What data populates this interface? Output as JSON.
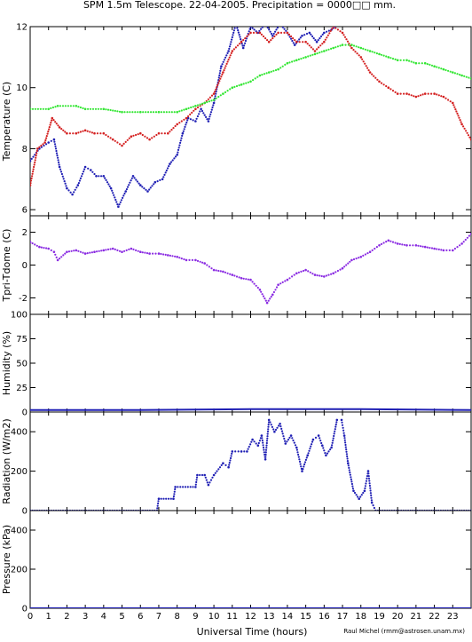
{
  "title": "SPM 1.5m Telescope. 22-04-2005. Precipitation = 0000□□ mm.",
  "xlabel": "Universal Time (hours)",
  "credit": "Raul Michel (rmm@astrosen.unam.mx)",
  "x_ticks": [
    "0",
    "1",
    "2",
    "3",
    "4",
    "5",
    "6",
    "7",
    "8",
    "9",
    "10",
    "11",
    "12",
    "13",
    "14",
    "15",
    "16",
    "17",
    "18",
    "19",
    "20",
    "21",
    "22",
    "23"
  ],
  "colors": {
    "blue": "#1f1fb4",
    "red": "#d42020",
    "green": "#33e633",
    "purple": "#8a2be2"
  },
  "chart_data": [
    {
      "type": "scatter",
      "ylabel": "Temperature (C)",
      "ylim": [
        5.8,
        12
      ],
      "yticks": [
        6,
        8,
        10,
        12
      ],
      "xlim": [
        0,
        24
      ],
      "series": [
        {
          "color": "blue",
          "points": [
            [
              0,
              7.6
            ],
            [
              0.5,
              8
            ],
            [
              1,
              8.2
            ],
            [
              1.3,
              8.3
            ],
            [
              1.6,
              7.4
            ],
            [
              2,
              6.7
            ],
            [
              2.3,
              6.5
            ],
            [
              2.6,
              6.8
            ],
            [
              3,
              7.4
            ],
            [
              3.3,
              7.3
            ],
            [
              3.6,
              7.1
            ],
            [
              4,
              7.1
            ],
            [
              4.4,
              6.7
            ],
            [
              4.8,
              6.1
            ],
            [
              5.2,
              6.6
            ],
            [
              5.6,
              7.1
            ],
            [
              6,
              6.8
            ],
            [
              6.4,
              6.6
            ],
            [
              6.8,
              6.9
            ],
            [
              7.2,
              7
            ],
            [
              7.6,
              7.5
            ],
            [
              8,
              7.8
            ],
            [
              8.3,
              8.5
            ],
            [
              8.6,
              9
            ],
            [
              9,
              8.9
            ],
            [
              9.3,
              9.3
            ],
            [
              9.7,
              8.9
            ],
            [
              10,
              9.5
            ],
            [
              10.4,
              10.7
            ],
            [
              10.8,
              11.2
            ],
            [
              11.2,
              12.1
            ],
            [
              11.6,
              11.3
            ],
            [
              12,
              12
            ],
            [
              12.4,
              11.8
            ],
            [
              12.8,
              12.1
            ],
            [
              13.2,
              11.7
            ],
            [
              13.6,
              12.1
            ],
            [
              14,
              11.8
            ],
            [
              14.4,
              11.4
            ],
            [
              14.8,
              11.7
            ],
            [
              15.2,
              11.8
            ],
            [
              15.6,
              11.5
            ],
            [
              16,
              11.8
            ],
            [
              16.4,
              11.9
            ],
            [
              16.8,
              12.1
            ]
          ]
        },
        {
          "color": "red",
          "points": [
            [
              0,
              6.8
            ],
            [
              0.4,
              8
            ],
            [
              0.8,
              8.2
            ],
            [
              1.2,
              9
            ],
            [
              1.6,
              8.7
            ],
            [
              2,
              8.5
            ],
            [
              2.5,
              8.5
            ],
            [
              3,
              8.6
            ],
            [
              3.5,
              8.5
            ],
            [
              4,
              8.5
            ],
            [
              4.5,
              8.3
            ],
            [
              5,
              8.1
            ],
            [
              5.5,
              8.4
            ],
            [
              6,
              8.5
            ],
            [
              6.5,
              8.3
            ],
            [
              7,
              8.5
            ],
            [
              7.5,
              8.5
            ],
            [
              8,
              8.8
            ],
            [
              8.5,
              9
            ],
            [
              9,
              9.3
            ],
            [
              9.5,
              9.5
            ],
            [
              10,
              9.8
            ],
            [
              10.5,
              10.5
            ],
            [
              11,
              11.2
            ],
            [
              11.5,
              11.5
            ],
            [
              12,
              11.8
            ],
            [
              12.5,
              11.8
            ],
            [
              13,
              11.5
            ],
            [
              13.5,
              11.8
            ],
            [
              14,
              11.8
            ],
            [
              14.5,
              11.5
            ],
            [
              15,
              11.5
            ],
            [
              15.5,
              11.2
            ],
            [
              16,
              11.5
            ],
            [
              16.5,
              12
            ],
            [
              17,
              11.8
            ],
            [
              17.5,
              11.3
            ],
            [
              18,
              11
            ],
            [
              18.5,
              10.5
            ],
            [
              19,
              10.2
            ],
            [
              19.5,
              10
            ],
            [
              20,
              9.8
            ],
            [
              20.5,
              9.8
            ],
            [
              21,
              9.7
            ],
            [
              21.5,
              9.8
            ],
            [
              22,
              9.8
            ],
            [
              22.5,
              9.7
            ],
            [
              23,
              9.5
            ],
            [
              23.5,
              8.8
            ],
            [
              24,
              8.3
            ]
          ]
        },
        {
          "color": "green",
          "points": [
            [
              0,
              9.3
            ],
            [
              1,
              9.3
            ],
            [
              1.5,
              9.4
            ],
            [
              2.5,
              9.4
            ],
            [
              3,
              9.3
            ],
            [
              4,
              9.3
            ],
            [
              5,
              9.2
            ],
            [
              6,
              9.2
            ],
            [
              7,
              9.2
            ],
            [
              8,
              9.2
            ],
            [
              8.5,
              9.3
            ],
            [
              9,
              9.4
            ],
            [
              9.5,
              9.5
            ],
            [
              10,
              9.6
            ],
            [
              10.5,
              9.8
            ],
            [
              11,
              10
            ],
            [
              11.5,
              10.1
            ],
            [
              12,
              10.2
            ],
            [
              12.5,
              10.4
            ],
            [
              13,
              10.5
            ],
            [
              13.5,
              10.6
            ],
            [
              14,
              10.8
            ],
            [
              14.5,
              10.9
            ],
            [
              15,
              11
            ],
            [
              15.5,
              11.1
            ],
            [
              16,
              11.2
            ],
            [
              16.5,
              11.3
            ],
            [
              17,
              11.4
            ],
            [
              17.5,
              11.4
            ],
            [
              18,
              11.3
            ],
            [
              18.5,
              11.2
            ],
            [
              19,
              11.1
            ],
            [
              19.5,
              11
            ],
            [
              20,
              10.9
            ],
            [
              20.5,
              10.9
            ],
            [
              21,
              10.8
            ],
            [
              21.5,
              10.8
            ],
            [
              22,
              10.7
            ],
            [
              22.5,
              10.6
            ],
            [
              23,
              10.5
            ],
            [
              23.5,
              10.4
            ],
            [
              24,
              10.3
            ]
          ]
        }
      ]
    },
    {
      "type": "scatter",
      "ylabel": "Tpri-Tdome (C)",
      "ylim": [
        -3,
        3
      ],
      "yticks": [
        -2,
        0,
        2
      ],
      "xlim": [
        0,
        24
      ],
      "series": [
        {
          "color": "purple",
          "points": [
            [
              0,
              1.4
            ],
            [
              0.5,
              1.1
            ],
            [
              1,
              1
            ],
            [
              1.3,
              0.8
            ],
            [
              1.5,
              0.3
            ],
            [
              2,
              0.8
            ],
            [
              2.5,
              0.9
            ],
            [
              3,
              0.7
            ],
            [
              3.5,
              0.8
            ],
            [
              4,
              0.9
            ],
            [
              4.5,
              1
            ],
            [
              5,
              0.8
            ],
            [
              5.5,
              1
            ],
            [
              6,
              0.8
            ],
            [
              6.5,
              0.7
            ],
            [
              7,
              0.7
            ],
            [
              7.5,
              0.6
            ],
            [
              8,
              0.5
            ],
            [
              8.5,
              0.3
            ],
            [
              9,
              0.3
            ],
            [
              9.5,
              0.1
            ],
            [
              10,
              -0.3
            ],
            [
              10.5,
              -0.4
            ],
            [
              11,
              -0.6
            ],
            [
              11.5,
              -0.8
            ],
            [
              12,
              -0.9
            ],
            [
              12.5,
              -1.5
            ],
            [
              12.9,
              -2.3
            ],
            [
              13.2,
              -1.8
            ],
            [
              13.5,
              -1.2
            ],
            [
              14,
              -0.9
            ],
            [
              14.5,
              -0.5
            ],
            [
              15,
              -0.3
            ],
            [
              15.5,
              -0.6
            ],
            [
              16,
              -0.7
            ],
            [
              16.5,
              -0.5
            ],
            [
              17,
              -0.2
            ],
            [
              17.5,
              0.3
            ],
            [
              18,
              0.5
            ],
            [
              18.5,
              0.8
            ],
            [
              19,
              1.2
            ],
            [
              19.5,
              1.5
            ],
            [
              20,
              1.3
            ],
            [
              20.5,
              1.2
            ],
            [
              21,
              1.2
            ],
            [
              21.5,
              1.1
            ],
            [
              22,
              1
            ],
            [
              22.5,
              0.9
            ],
            [
              23,
              0.9
            ],
            [
              23.5,
              1.3
            ],
            [
              24,
              1.9
            ]
          ]
        }
      ]
    },
    {
      "type": "line",
      "ylabel": "Humidity (%)",
      "ylim": [
        0,
        100
      ],
      "yticks": [
        0,
        25,
        50,
        75,
        100
      ],
      "xlim": [
        0,
        24
      ],
      "series": [
        {
          "color": "blue",
          "points": [
            [
              0,
              2
            ],
            [
              6,
              2
            ],
            [
              12,
              3
            ],
            [
              18,
              3
            ],
            [
              24,
              2
            ]
          ]
        }
      ]
    },
    {
      "type": "scatter",
      "ylabel": "Radiation (W/m2)",
      "ylim": [
        0,
        500
      ],
      "yticks": [
        0,
        200,
        400
      ],
      "xlim": [
        0,
        24
      ],
      "series": [
        {
          "color": "blue",
          "points": [
            [
              0,
              0
            ],
            [
              6.9,
              0
            ],
            [
              7,
              60
            ],
            [
              7.8,
              60
            ],
            [
              7.9,
              120
            ],
            [
              9,
              120
            ],
            [
              9.1,
              180
            ],
            [
              9.5,
              180
            ],
            [
              9.7,
              130
            ],
            [
              10,
              180
            ],
            [
              10.5,
              240
            ],
            [
              10.8,
              220
            ],
            [
              11,
              300
            ],
            [
              11.5,
              300
            ],
            [
              11.8,
              300
            ],
            [
              12.1,
              360
            ],
            [
              12.4,
              330
            ],
            [
              12.6,
              380
            ],
            [
              12.8,
              260
            ],
            [
              13,
              460
            ],
            [
              13.3,
              400
            ],
            [
              13.6,
              440
            ],
            [
              13.9,
              340
            ],
            [
              14.2,
              380
            ],
            [
              14.5,
              320
            ],
            [
              14.8,
              200
            ],
            [
              15.1,
              280
            ],
            [
              15.4,
              360
            ],
            [
              15.7,
              380
            ],
            [
              15.9,
              330
            ],
            [
              16.1,
              280
            ],
            [
              16.4,
              320
            ],
            [
              16.7,
              460
            ],
            [
              16.95,
              460
            ],
            [
              17.1,
              380
            ],
            [
              17.3,
              240
            ],
            [
              17.6,
              100
            ],
            [
              17.9,
              60
            ],
            [
              18.2,
              100
            ],
            [
              18.4,
              200
            ],
            [
              18.6,
              40
            ],
            [
              18.8,
              0
            ],
            [
              24,
              0
            ]
          ]
        }
      ]
    },
    {
      "type": "line",
      "ylabel": "Pressure (kPa)",
      "ylim": [
        0,
        500
      ],
      "yticks": [
        0,
        200,
        400
      ],
      "xlim": [
        0,
        24
      ],
      "series": [
        {
          "color": "blue",
          "points": [
            [
              0,
              0
            ],
            [
              24,
              0
            ]
          ]
        }
      ]
    }
  ]
}
